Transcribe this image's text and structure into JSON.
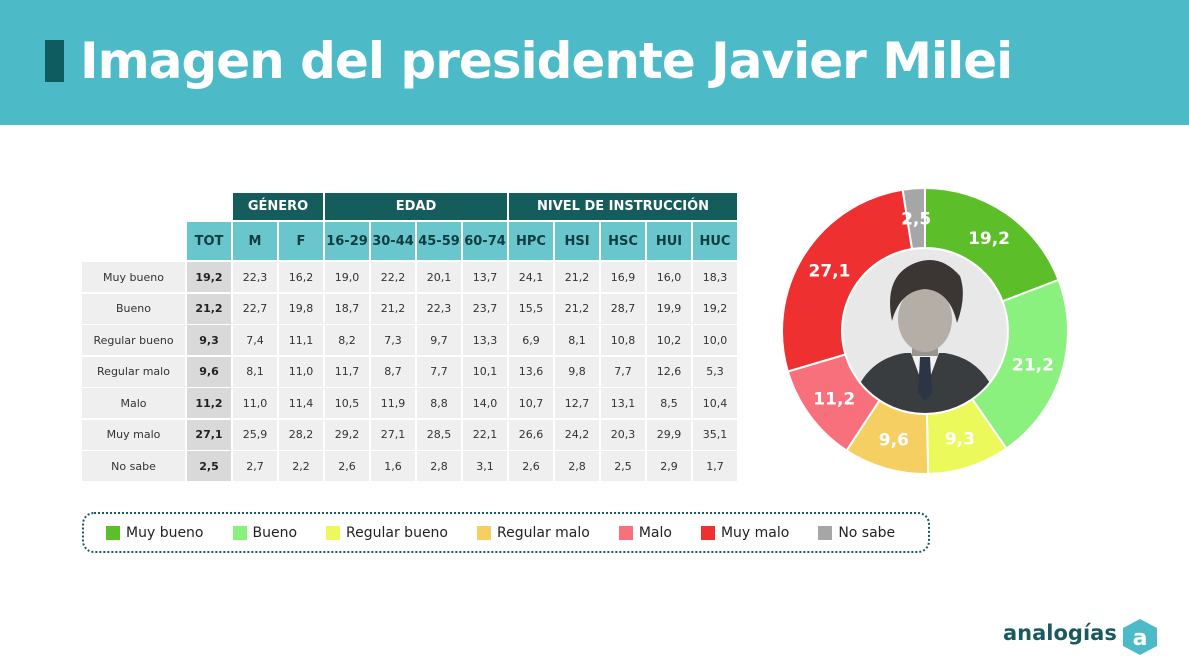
{
  "header": {
    "title": "Imagen del presidente Javier Milei"
  },
  "table": {
    "groups": [
      {
        "label": "GÉNERO",
        "span": 2
      },
      {
        "label": "EDAD",
        "span": 4
      },
      {
        "label": "NIVEL DE INSTRUCCIÓN",
        "span": 5
      }
    ],
    "columns": [
      "TOT",
      "M",
      "F",
      "16-29",
      "30-44",
      "45-59",
      "60-74",
      "HPC",
      "HSI",
      "HSC",
      "HUI",
      "HUC"
    ],
    "rows": [
      {
        "label": "Muy bueno",
        "values": [
          "19,2",
          "22,3",
          "16,2",
          "19,0",
          "22,2",
          "20,1",
          "13,7",
          "24,1",
          "21,2",
          "16,9",
          "16,0",
          "18,3"
        ]
      },
      {
        "label": "Bueno",
        "values": [
          "21,2",
          "22,7",
          "19,8",
          "18,7",
          "21,2",
          "22,3",
          "23,7",
          "15,5",
          "21,2",
          "28,7",
          "19,9",
          "19,2"
        ]
      },
      {
        "label": "Regular bueno",
        "values": [
          "9,3",
          "7,4",
          "11,1",
          "8,2",
          "7,3",
          "9,7",
          "13,3",
          "6,9",
          "8,1",
          "10,8",
          "10,2",
          "10,0"
        ]
      },
      {
        "label": "Regular malo",
        "values": [
          "9,6",
          "8,1",
          "11,0",
          "11,7",
          "8,7",
          "7,7",
          "10,1",
          "13,6",
          "9,8",
          "7,7",
          "12,6",
          "5,3"
        ]
      },
      {
        "label": "Malo",
        "values": [
          "11,2",
          "11,0",
          "11,4",
          "10,5",
          "11,9",
          "8,8",
          "14,0",
          "10,7",
          "12,7",
          "13,1",
          "8,5",
          "10,4"
        ]
      },
      {
        "label": "Muy malo",
        "values": [
          "27,1",
          "25,9",
          "28,2",
          "29,2",
          "27,1",
          "28,5",
          "22,1",
          "26,6",
          "24,2",
          "20,3",
          "29,9",
          "35,1"
        ]
      },
      {
        "label": "No sabe",
        "values": [
          "2,5",
          "2,7",
          "2,2",
          "2,6",
          "1,6",
          "2,8",
          "3,1",
          "2,6",
          "2,8",
          "2,5",
          "2,9",
          "1,7"
        ]
      }
    ]
  },
  "chart_data": {
    "type": "pie",
    "donut": true,
    "categories": [
      "Muy bueno",
      "Bueno",
      "Regular bueno",
      "Regular malo",
      "Malo",
      "Muy malo",
      "No sabe"
    ],
    "values": [
      19.2,
      21.2,
      9.3,
      9.6,
      11.2,
      27.1,
      2.5
    ],
    "value_labels": [
      "19,2",
      "21,2",
      "9,3",
      "9,6",
      "11,2",
      "27,1",
      "2,5"
    ],
    "colors": [
      "#5cbf2a",
      "#8af07e",
      "#ebfa5a",
      "#f5cf62",
      "#f7707c",
      "#ef3030",
      "#a6a6a6"
    ],
    "legend_position": "bottom"
  },
  "legend": [
    {
      "label": "Muy bueno",
      "color": "#5cbf2a"
    },
    {
      "label": "Bueno",
      "color": "#8af07e"
    },
    {
      "label": "Regular bueno",
      "color": "#ebfa5a"
    },
    {
      "label": "Regular malo",
      "color": "#f5cf62"
    },
    {
      "label": "Malo",
      "color": "#f7707c"
    },
    {
      "label": "Muy malo",
      "color": "#ef3030"
    },
    {
      "label": "No sabe",
      "color": "#a6a6a6"
    }
  ],
  "center_image": {
    "icon": "president-portrait-photo"
  },
  "logo": {
    "text": "analogías",
    "mark": "a",
    "icon": "analogias-logo-icon"
  },
  "colors": {
    "banner": "#4dbac8",
    "group_header": "#155c5c",
    "column_header": "#6ac6cd"
  }
}
